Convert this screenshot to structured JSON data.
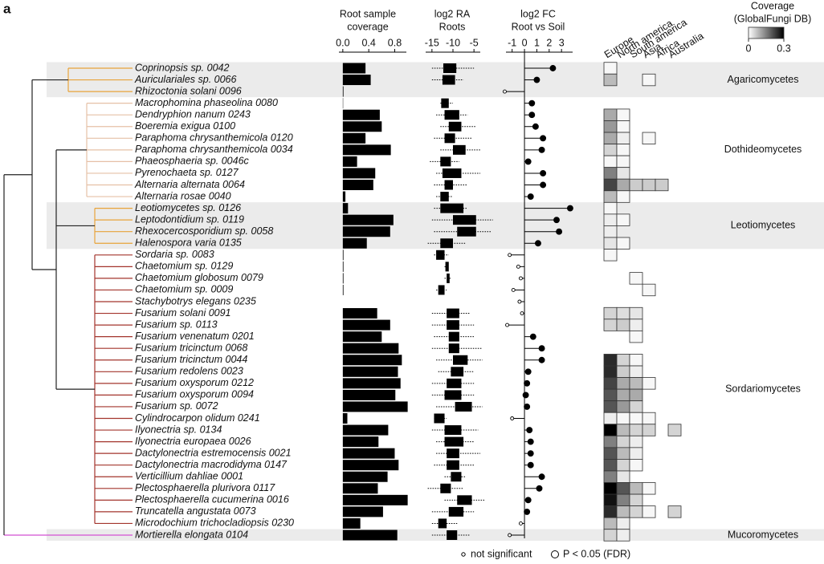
{
  "panel_label": "a",
  "classes": [
    {
      "name": "Agaricomycetes",
      "color": "#e8a33a",
      "shaded": true,
      "taxa": [
        "Coprinopsis sp. 0042",
        "Auriculariales sp. 0066",
        "Rhizoctonia solani 0096"
      ]
    },
    {
      "name": "Dothideomycetes",
      "color": "#e6c0a6",
      "shaded": false,
      "taxa": [
        "Macrophomina phaseolina 0080",
        "Dendryphion nanum 0243",
        "Boeremia exigua 0100",
        "Paraphoma chrysanthemicola 0120",
        "Paraphoma chrysanthemicola 0034",
        "Phaeosphaeria sp. 0046c",
        "Pyrenochaeta sp. 0127",
        "Alternaria alternata 0064",
        "Alternaria rosae 0040"
      ]
    },
    {
      "name": "Leotiomycetes",
      "color": "#e8a33a",
      "shaded": true,
      "taxa": [
        "Leotiomycetes sp. 0126",
        "Leptodontidium sp. 0119",
        "Rhexocercosporidium sp. 0058",
        "Halenospora varia 0135"
      ]
    },
    {
      "name": "Sordariomycetes",
      "color": "#a3342c",
      "shaded": false,
      "taxa": [
        "Sordaria sp. 0083",
        "Chaetomium sp. 0129",
        "Chaetomium globosum 0079",
        "Chaetomium sp. 0009",
        "Stachybotrys elegans 0235",
        "Fusarium solani 0091",
        "Fusarium sp. 0113",
        "Fusarium venenatum 0201",
        "Fusarium tricinctum 0068",
        "Fusarium tricinctum 0044",
        "Fusarium redolens 0023",
        "Fusarium oxysporum 0212",
        "Fusarium oxysporum 0094",
        "Fusarium sp. 0072",
        "Cylindrocarpon olidum 0241",
        "Ilyonectria sp. 0134",
        "Ilyonectria europaea 0026",
        "Dactylonectria estremocensis 0021",
        "Dactylonectria macrodidyma 0147",
        "Verticillium dahliae 0001",
        "Plectosphaerella plurivora 0117",
        "Plectosphaerella cucumerina 0016",
        "Truncatella angustata 0073",
        "Microdochium trichocladiopsis 0230"
      ]
    },
    {
      "name": "Mucoromycetes",
      "color": "#d24fd2",
      "shaded": true,
      "taxa": [
        "Mortierella elongata 0104"
      ]
    }
  ],
  "chart_data": [
    {
      "type": "bar",
      "title": [
        "Root sample",
        "coverage"
      ],
      "color": "#000000",
      "xlim": [
        -0.06,
        0.98
      ],
      "xticks": [
        {
          "value": 0,
          "label": "0.0"
        },
        0.4,
        0.8
      ],
      "values": [
        0.35,
        0.43,
        0.01,
        0.005,
        0.57,
        0.6,
        0.35,
        0.74,
        0.22,
        0.5,
        0.47,
        0.04,
        0.08,
        0.78,
        0.73,
        0.37,
        0.01,
        0.01,
        0.01,
        0.01,
        0,
        0.53,
        0.73,
        0.6,
        0.86,
        0.91,
        0.85,
        0.89,
        0.81,
        1.0,
        0.07,
        0.7,
        0.55,
        0.8,
        0.86,
        0.69,
        0.54,
        1.0,
        0.62,
        0.27,
        0.84
      ]
    },
    {
      "type": "box",
      "title": [
        "log2 RA",
        "Roots"
      ],
      "color": "#000000",
      "xlim": [
        -16.5,
        -3.5
      ],
      "xticks": [
        -15,
        -10,
        -5
      ],
      "whisker_low": [
        -15,
        -15,
        null,
        -13,
        -14,
        -13,
        -14.5,
        -13,
        -15.5,
        -14,
        -14.5,
        -14,
        -14.5,
        -15,
        -14.5,
        -16,
        -14.5,
        -12,
        -12,
        -14,
        null,
        -15,
        -15,
        -14.5,
        -15,
        -14,
        -13.5,
        -15,
        -15,
        -14,
        -14.5,
        -15,
        -14,
        -14,
        -14.5,
        -12,
        -16,
        -12,
        -15,
        -15,
        -15
      ],
      "q1": [
        -12.3,
        -12.5,
        null,
        -12.8,
        -12,
        -11,
        -12,
        -10,
        -13,
        -12.5,
        -12,
        -13,
        -13,
        -10,
        -9,
        -13,
        -14,
        -11.8,
        -11.5,
        -13.5,
        null,
        -11.5,
        -11.5,
        -11,
        -11,
        -10,
        -10.5,
        -11.5,
        -12,
        -9.5,
        -14.5,
        -12,
        -12,
        -11.5,
        -11.5,
        -10.5,
        -13,
        -9,
        -11,
        -13.5,
        -11.5
      ],
      "q3": [
        -9.2,
        -9.5,
        null,
        -11,
        -8.5,
        -8,
        -9.5,
        -7,
        -10.5,
        -8,
        -10,
        -11,
        -7.5,
        -4.5,
        -4.5,
        -10,
        -12,
        -11,
        -10.8,
        -12,
        null,
        -8.5,
        -8.5,
        -8.5,
        -8.5,
        -6.5,
        -7.5,
        -8,
        -8,
        -5.5,
        -12,
        -8,
        -7.5,
        -8.5,
        -8.5,
        -8,
        -10.5,
        -5.5,
        -7.5,
        -11.5,
        -9
      ],
      "whisker_high": [
        -5,
        -7.5,
        null,
        -10,
        -6.5,
        -4.5,
        -5.5,
        -3.5,
        -8.5,
        -3.5,
        -6.5,
        -10,
        -6.5,
        -0.5,
        -1,
        -7,
        -11,
        -11,
        -10.5,
        -11.5,
        null,
        -6,
        -5,
        -5,
        -3,
        -3,
        -5,
        -5,
        -5,
        -3,
        -11.5,
        -4,
        -5,
        -3.5,
        -5,
        -7,
        -7.5,
        -2.5,
        -5,
        -9,
        -6
      ]
    },
    {
      "type": "lollipop",
      "title": [
        "log2 FC",
        "Root vs Soil"
      ],
      "color": "#000000",
      "xlim": [
        -1.5,
        3.9
      ],
      "xticks": [
        -1,
        0,
        1,
        2,
        3
      ],
      "values": [
        2.3,
        1.0,
        -1.6,
        0.6,
        0.6,
        0.9,
        1.5,
        1.4,
        0.3,
        1.5,
        1.5,
        0.5,
        3.7,
        2.6,
        2.8,
        1.1,
        -1.2,
        -0.5,
        -0.3,
        -0.9,
        -0.4,
        -0.2,
        -1.4,
        0.7,
        1.4,
        1.4,
        0.3,
        0.2,
        0.1,
        0.2,
        -1.0,
        0.4,
        0.5,
        0.5,
        0.5,
        1.4,
        1.2,
        0.3,
        0.2,
        -0.3,
        -1.2
      ],
      "significant": [
        true,
        true,
        false,
        true,
        true,
        true,
        true,
        true,
        true,
        true,
        true,
        true,
        true,
        true,
        true,
        true,
        false,
        false,
        false,
        false,
        false,
        false,
        false,
        true,
        true,
        true,
        true,
        true,
        true,
        true,
        false,
        true,
        true,
        true,
        true,
        true,
        true,
        true,
        true,
        false,
        false
      ],
      "legend": [
        "not significant",
        "P < 0.05 (FDR)"
      ]
    },
    {
      "type": "heatmap",
      "title": [
        "Coverage",
        "(GlobalFungi DB)"
      ],
      "columns": [
        "Europe",
        "North america",
        "South america",
        "Asia",
        "Africa",
        "Australia"
      ],
      "zlim": [
        0,
        0.3
      ],
      "zticks": [
        0,
        0.3
      ],
      "values": [
        [
          0.01,
          null,
          null,
          null,
          null,
          null
        ],
        [
          0.08,
          null,
          null,
          0.01,
          null,
          null
        ],
        [
          null,
          null,
          null,
          null,
          null,
          null
        ],
        [
          null,
          null,
          null,
          null,
          null,
          null
        ],
        [
          0.1,
          0.01,
          null,
          null,
          null,
          null
        ],
        [
          0.12,
          0.01,
          null,
          null,
          null,
          null
        ],
        [
          0.1,
          0.02,
          null,
          0.01,
          null,
          null
        ],
        [
          0.05,
          0.01,
          null,
          null,
          null,
          null
        ],
        [
          0.01,
          0.01,
          null,
          null,
          null,
          null
        ],
        [
          0.15,
          0.03,
          null,
          null,
          null,
          null
        ],
        [
          0.22,
          0.1,
          0.06,
          0.06,
          0.06,
          null
        ],
        [
          0.08,
          0.01,
          null,
          null,
          null,
          null
        ],
        [
          0.01,
          null,
          null,
          null,
          null,
          null
        ],
        [
          0.02,
          0.01,
          null,
          null,
          null,
          null
        ],
        [
          0.02,
          null,
          null,
          null,
          null,
          null
        ],
        [
          0.03,
          0.01,
          null,
          null,
          null,
          null
        ],
        [
          0.01,
          null,
          null,
          null,
          null,
          null
        ],
        [
          null,
          null,
          null,
          null,
          null,
          null
        ],
        [
          null,
          null,
          0.01,
          null,
          null,
          null
        ],
        [
          null,
          null,
          null,
          0.01,
          null,
          null
        ],
        [
          null,
          null,
          null,
          null,
          null,
          null
        ],
        [
          0.05,
          0.04,
          0.03,
          null,
          null,
          null
        ],
        [
          0.05,
          0.06,
          0.02,
          null,
          null,
          null
        ],
        [
          null,
          null,
          0.01,
          null,
          null,
          null
        ],
        [
          null,
          null,
          null,
          null,
          null,
          null
        ],
        [
          0.25,
          0.05,
          0.01,
          null,
          null,
          null
        ],
        [
          0.25,
          0.06,
          0.02,
          null,
          null,
          null
        ],
        [
          0.22,
          0.1,
          0.08,
          0.01,
          null,
          null
        ],
        [
          0.2,
          0.1,
          0.1,
          null,
          null,
          null
        ],
        [
          0.2,
          0.12,
          0.05,
          null,
          null,
          null
        ],
        [
          0.02,
          0.01,
          0.01,
          0.01,
          null,
          null
        ],
        [
          0.3,
          0.08,
          0.05,
          0.05,
          null,
          0.05
        ],
        [
          0.15,
          0.05,
          0.02,
          null,
          null,
          null
        ],
        [
          0.2,
          0.08,
          0.02,
          null,
          null,
          null
        ],
        [
          0.2,
          0.05,
          0.01,
          null,
          null,
          null
        ],
        [
          0.15,
          0.03,
          null,
          null,
          null,
          null
        ],
        [
          0.3,
          0.2,
          0.08,
          0.01,
          null,
          null
        ],
        [
          0.28,
          0.15,
          0.05,
          null,
          null,
          null
        ],
        [
          0.25,
          0.08,
          0.05,
          0.01,
          null,
          0.05
        ],
        [
          0.08,
          0.02,
          null,
          null,
          null,
          null
        ],
        [
          0.05,
          0.02,
          null,
          null,
          null,
          null
        ]
      ]
    }
  ]
}
